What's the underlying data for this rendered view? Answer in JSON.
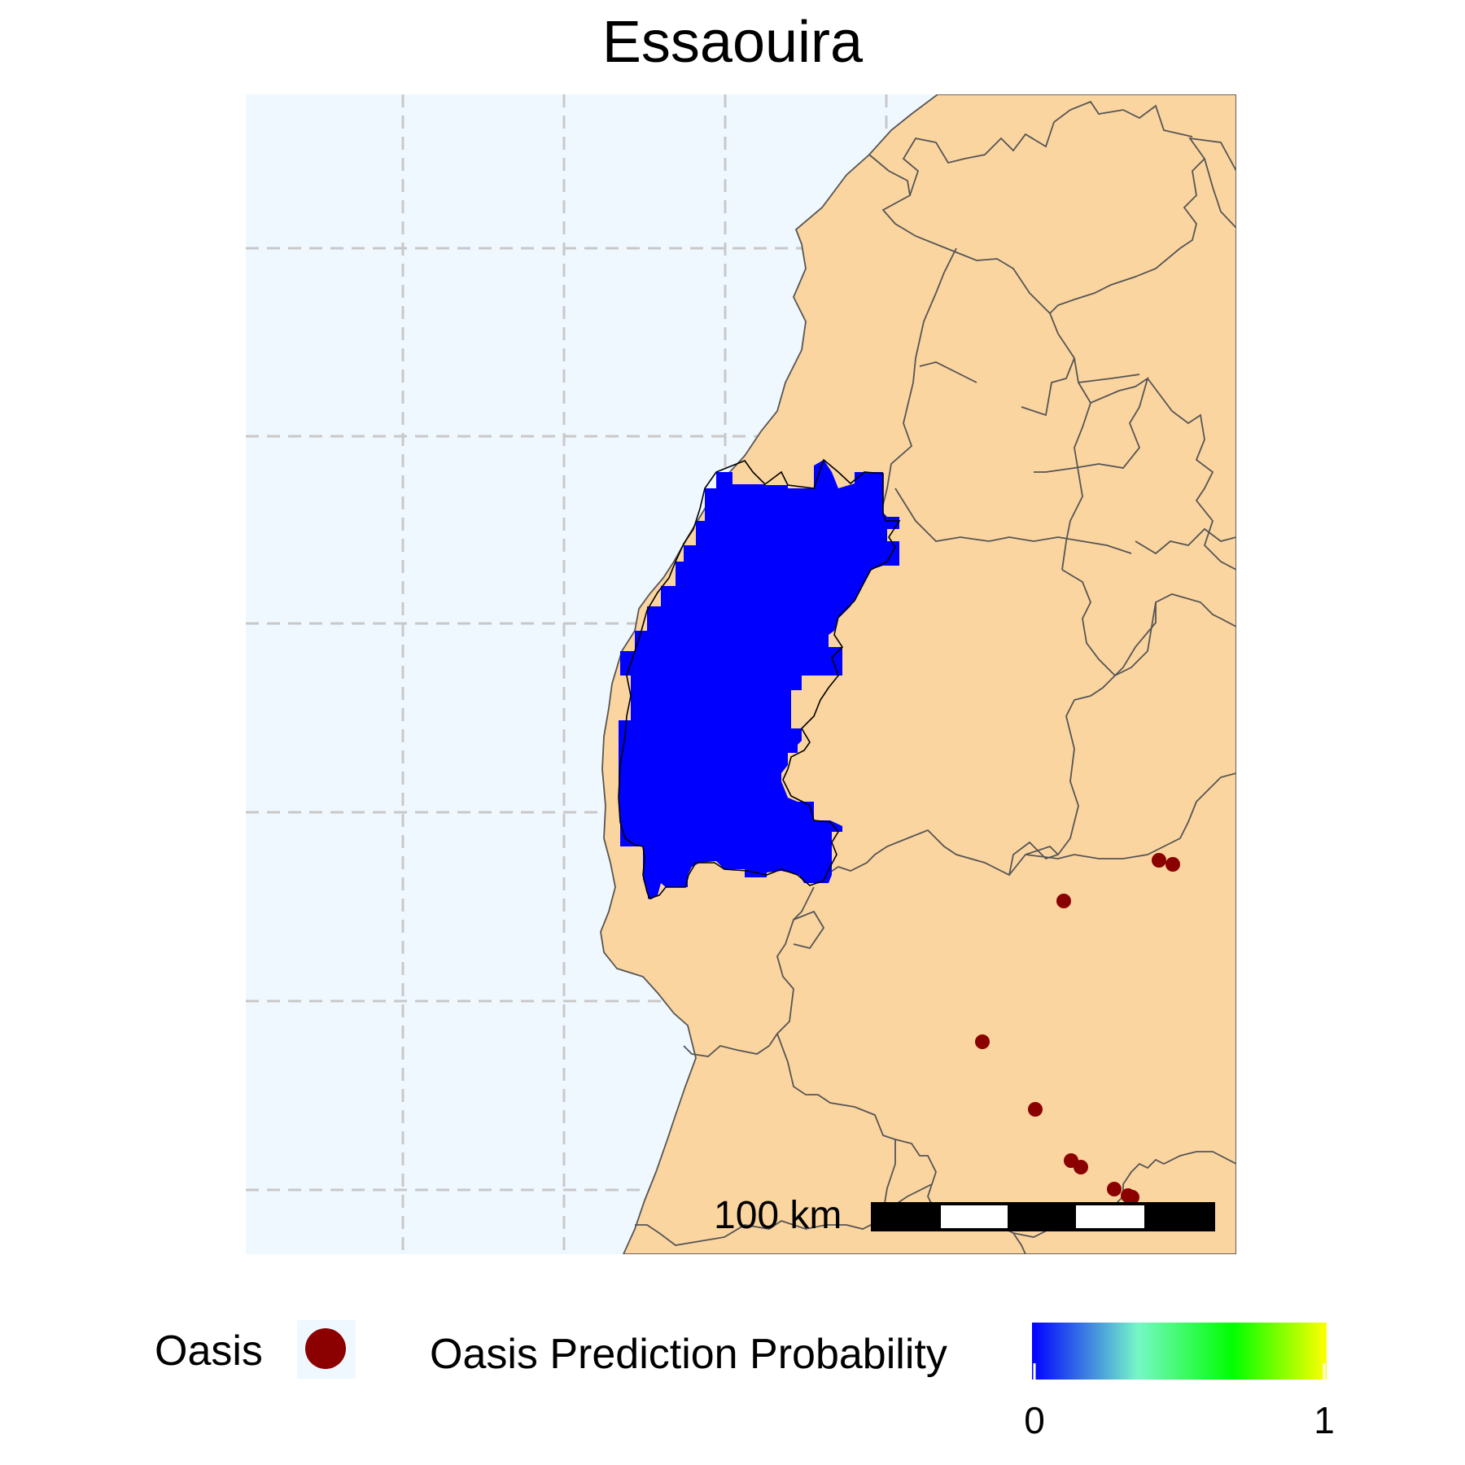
{
  "title": "Essaouira",
  "scale_bar": {
    "label": "100 km"
  },
  "legend": {
    "oasis_label": "Oasis",
    "probability_label": "Oasis Prediction Probability",
    "scale_min": "0",
    "scale_max": "1",
    "gradient_colors": [
      "#0000ff",
      "#76f7c6",
      "#00ff00",
      "#ffff00"
    ]
  },
  "colors": {
    "sea": "#f0f8ff",
    "land": "#fbd5a0",
    "prediction": "#0000ff",
    "oasis_point": "#8b0000",
    "grid": "#c8c8c8"
  },
  "oasis_points": 11
}
